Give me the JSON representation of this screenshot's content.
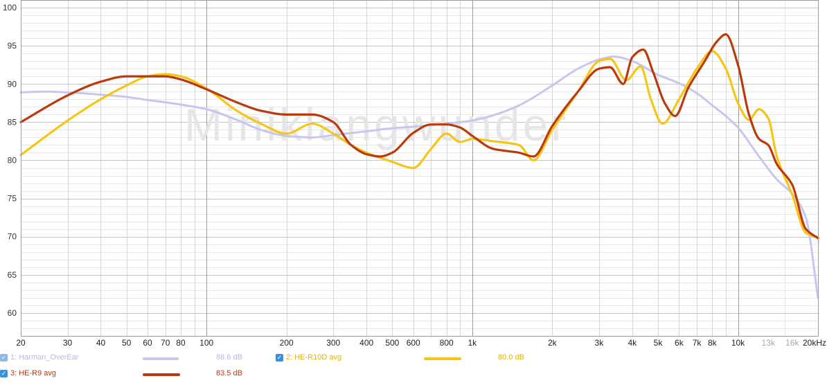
{
  "chart_data": {
    "type": "line",
    "watermark": "Miniklangwunder",
    "x_scale": "log",
    "xlim": [
      20,
      20000
    ],
    "ylim": [
      57,
      101
    ],
    "grid": true,
    "y_ticks": [
      60,
      65,
      70,
      75,
      80,
      85,
      90,
      95,
      100
    ],
    "x_ticks": [
      {
        "label": "20",
        "value": 20,
        "light": false
      },
      {
        "label": "30",
        "value": 30,
        "light": false
      },
      {
        "label": "40",
        "value": 40,
        "light": false
      },
      {
        "label": "50",
        "value": 50,
        "light": false
      },
      {
        "label": "60",
        "value": 60,
        "light": false
      },
      {
        "label": "70",
        "value": 70,
        "light": false
      },
      {
        "label": "80",
        "value": 80,
        "light": false
      },
      {
        "label": "100",
        "value": 100,
        "light": false
      },
      {
        "label": "200",
        "value": 200,
        "light": false
      },
      {
        "label": "300",
        "value": 300,
        "light": false
      },
      {
        "label": "400",
        "value": 400,
        "light": false
      },
      {
        "label": "500",
        "value": 500,
        "light": false
      },
      {
        "label": "600",
        "value": 600,
        "light": false
      },
      {
        "label": "800",
        "value": 800,
        "light": false
      },
      {
        "label": "1k",
        "value": 1000,
        "light": false
      },
      {
        "label": "2k",
        "value": 2000,
        "light": false
      },
      {
        "label": "3k",
        "value": 3000,
        "light": false
      },
      {
        "label": "4k",
        "value": 4000,
        "light": false
      },
      {
        "label": "5k",
        "value": 5000,
        "light": false
      },
      {
        "label": "6k",
        "value": 6000,
        "light": false
      },
      {
        "label": "7k",
        "value": 7000,
        "light": false
      },
      {
        "label": "8k",
        "value": 8000,
        "light": false
      },
      {
        "label": "10k",
        "value": 10000,
        "light": false
      },
      {
        "label": "13k",
        "value": 13000,
        "light": true
      },
      {
        "label": "16k",
        "value": 16000,
        "light": true
      },
      {
        "label": "20kHz",
        "value": 20000,
        "light": false
      }
    ],
    "series": [
      {
        "name": "1: Harman_OverEar",
        "color": "#c6c6ef",
        "checked": false,
        "value_label": "88.6 dB",
        "x": [
          20,
          25,
          30,
          40,
          50,
          60,
          70,
          80,
          100,
          130,
          160,
          200,
          250,
          300,
          400,
          500,
          600,
          700,
          800,
          1000,
          1200,
          1500,
          2000,
          2500,
          3000,
          3400,
          4000,
          5000,
          6000,
          7000,
          8000,
          9000,
          10000,
          12000,
          14000,
          16000,
          18000,
          20000
        ],
        "y": [
          88.9,
          89.0,
          88.9,
          88.6,
          88.3,
          87.9,
          87.6,
          87.3,
          86.7,
          85.3,
          84.0,
          83.2,
          83.0,
          83.3,
          83.8,
          84.2,
          84.4,
          84.6,
          84.8,
          85.2,
          85.9,
          87.2,
          89.8,
          92.0,
          93.2,
          93.6,
          93.0,
          91.2,
          90.1,
          88.8,
          87.2,
          85.8,
          84.3,
          80.5,
          77.5,
          75.6,
          72.5,
          62.0
        ]
      },
      {
        "name": "2: HE-R10D avg",
        "color": "#f5c518",
        "checked": true,
        "value_label": "80.0 dB",
        "x": [
          20,
          30,
          40,
          50,
          60,
          70,
          80,
          100,
          130,
          160,
          200,
          250,
          300,
          350,
          400,
          500,
          600,
          700,
          800,
          900,
          1000,
          1200,
          1500,
          1700,
          2000,
          2500,
          3000,
          3300,
          3800,
          4300,
          4700,
          5200,
          6000,
          7000,
          8000,
          9000,
          10000,
          11000,
          12000,
          13000,
          14000,
          16000,
          18000,
          20000
        ],
        "y": [
          80.7,
          85.2,
          88.0,
          89.8,
          91.0,
          91.3,
          91.0,
          89.4,
          86.5,
          84.8,
          83.5,
          84.8,
          83.5,
          82.0,
          81.0,
          79.8,
          79.0,
          81.5,
          83.5,
          82.4,
          82.8,
          82.5,
          82.0,
          80.0,
          84.0,
          89.0,
          93.0,
          93.3,
          90.5,
          92.3,
          88.0,
          84.8,
          88.0,
          92.0,
          94.3,
          92.0,
          87.5,
          85.3,
          86.7,
          85.5,
          80.5,
          75.5,
          70.5,
          69.9
        ]
      },
      {
        "name": "3: HE-R9 avg",
        "color": "#bb3a0c",
        "checked": true,
        "value_label": "83.5 dB",
        "x": [
          20,
          30,
          40,
          50,
          60,
          70,
          80,
          100,
          130,
          160,
          200,
          250,
          300,
          350,
          400,
          450,
          500,
          600,
          700,
          800,
          900,
          1000,
          1200,
          1500,
          1700,
          2000,
          2500,
          3000,
          3300,
          3700,
          4000,
          4400,
          4800,
          5300,
          5800,
          6500,
          7500,
          8300,
          9000,
          10000,
          11000,
          12000,
          13000,
          14000,
          16000,
          18000,
          20000
        ],
        "y": [
          85.0,
          88.5,
          90.3,
          91.0,
          91.0,
          91.0,
          90.6,
          89.3,
          87.6,
          86.5,
          86.0,
          86.0,
          85.0,
          82.0,
          80.8,
          80.5,
          81.0,
          83.6,
          84.7,
          84.7,
          84.3,
          83.2,
          81.5,
          81.0,
          80.5,
          84.5,
          89.0,
          92.0,
          92.2,
          90.0,
          93.5,
          94.5,
          91.5,
          87.5,
          85.8,
          89.5,
          93.0,
          95.5,
          96.5,
          92.5,
          86.0,
          82.8,
          82.0,
          79.5,
          76.8,
          71.0,
          69.8
        ]
      }
    ]
  }
}
